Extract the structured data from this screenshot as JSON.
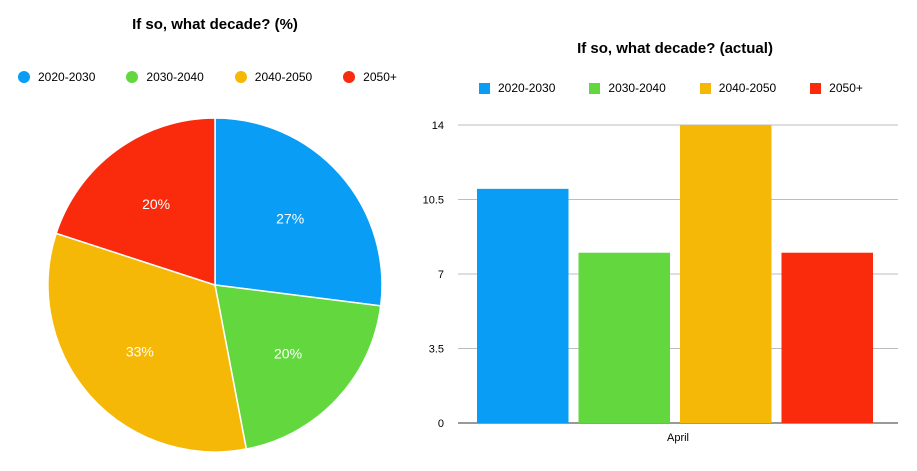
{
  "chart_data": [
    {
      "type": "pie",
      "title": "If so, what decade? (%)",
      "legend_position": "top",
      "slices": [
        {
          "label": "2020-2030",
          "value": 27,
          "text": "27%",
          "color": "#0a9df5"
        },
        {
          "label": "2030-2040",
          "value": 20,
          "text": "20%",
          "color": "#62d83e"
        },
        {
          "label": "2040-2050",
          "value": 33,
          "text": "33%",
          "color": "#f5b807"
        },
        {
          "label": "2050+",
          "value": 20,
          "text": "20%",
          "color": "#fa2b0c"
        }
      ]
    },
    {
      "type": "bar",
      "title": "If so, what decade? (actual)",
      "legend_position": "top",
      "categories": [
        "April"
      ],
      "series": [
        {
          "name": "2020-2030",
          "values": [
            11
          ],
          "color": "#0a9df5"
        },
        {
          "name": "2030-2040",
          "values": [
            8
          ],
          "color": "#62d83e"
        },
        {
          "name": "2040-2050",
          "values": [
            14
          ],
          "color": "#f5b807"
        },
        {
          "name": "2050+",
          "values": [
            8
          ],
          "color": "#fa2b0c"
        }
      ],
      "ylim": [
        0,
        14
      ],
      "yticks": [
        "0",
        "3.5",
        "7",
        "10.5",
        "14"
      ],
      "grid": true
    }
  ]
}
